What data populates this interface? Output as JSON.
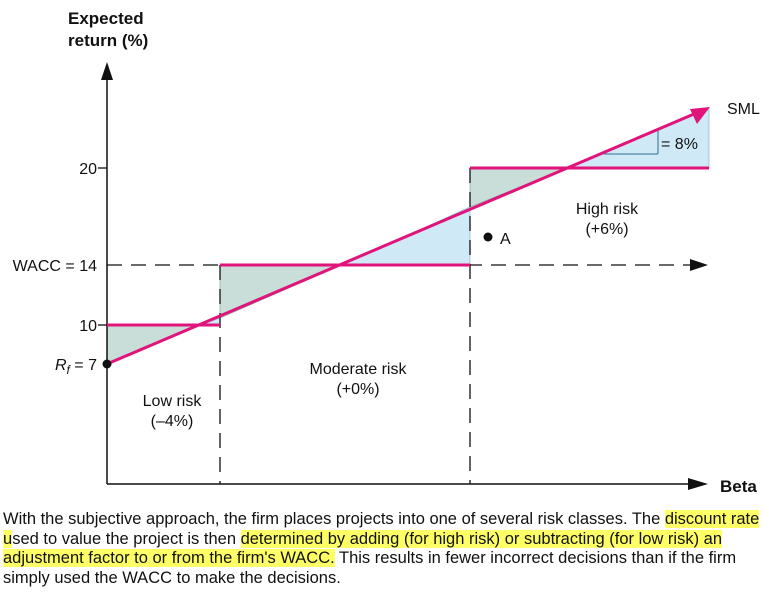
{
  "diagram": {
    "y_axis_title_line1": "Expected",
    "y_axis_title_line2": "return (%)",
    "x_axis_title": "Beta",
    "ticks": {
      "y20": "20",
      "wacc_prefix": "WACC = 14",
      "y10": "10",
      "rf_letter": "R",
      "rf_subscript": "f",
      "rf_value": " = 7"
    },
    "sml_label": "SML",
    "sml_gap_label": "= 8%",
    "point_a_label": "A",
    "regions": {
      "low": {
        "name": "Low risk",
        "adjustment": "(–4%)"
      },
      "moderate": {
        "name": "Moderate risk",
        "adjustment": "(+0%)"
      },
      "high": {
        "name": "High risk",
        "adjustment": "(+6%)"
      }
    },
    "colors": {
      "sml_and_hurdles": "#e0147a",
      "fill_rate_above": "#c9ded8",
      "fill_rate_below": "#cfe9f7",
      "axis": "#111111"
    }
  },
  "caption": {
    "part1": "With the subjective approach, the firm places projects into one of several risk classes. The ",
    "hl1": "discount rate u",
    "part2": "sed to value the project is then ",
    "hl2": "determined by adding (for high risk) or subtracting (for low risk) an adjustment factor to or from the firm's WACC.",
    "part3": "  This results in fewer incorrect decisions than if the firm simply used the WACC to make the decisions."
  }
}
